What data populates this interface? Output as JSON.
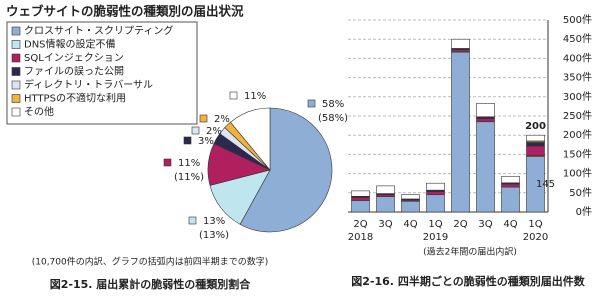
{
  "chart_data": [
    {
      "type": "pie",
      "title": "ウェブサイトの脆弱性の種類別の届出状況",
      "categories": [
        "クロスサイト・スクリプティング",
        "DNS情報の設定不備",
        "SQLインジェクション",
        "ファイルの誤った公開",
        "ディレクトリ・トラバーサル",
        "HTTPSの不適切な利用",
        "その他"
      ],
      "values": [
        58,
        13,
        11,
        3,
        2,
        2,
        11
      ],
      "value_labels": [
        "58%",
        "13%",
        "11%",
        "3%",
        "2%",
        "2%",
        "11%"
      ],
      "previous_value_labels": [
        "(58%)",
        "(13%)",
        "(11%)",
        null,
        null,
        null,
        null
      ],
      "colors": [
        "#8eaed6",
        "#bfe6ee",
        "#b0205e",
        "#2b2950",
        "#dfe4f2",
        "#f2b33d",
        "#ffffff"
      ],
      "note": "(10,700件の内訳、グラフの括弧内は前四半期までの数字)",
      "caption": "図2-15. 届出累計の脆弱性の種類別割合"
    },
    {
      "type": "bar",
      "stacked": true,
      "categories": [
        "2Q",
        "3Q",
        "4Q",
        "1Q",
        "2Q",
        "3Q",
        "4Q",
        "1Q"
      ],
      "year_labels": [
        "2018",
        null,
        null,
        "2019",
        null,
        null,
        null,
        "2020"
      ],
      "series": [
        {
          "color": "#8eaed6",
          "values": [
            30,
            40,
            28,
            45,
            415,
            235,
            65,
            145
          ],
          "value_labels": [
            null,
            null,
            null,
            null,
            null,
            null,
            null,
            "145"
          ]
        },
        {
          "color": "#bfe6ee",
          "values": [
            0,
            0,
            0,
            0,
            3,
            0,
            0,
            2
          ]
        },
        {
          "color": "#b0205e",
          "values": [
            8,
            5,
            3,
            8,
            5,
            8,
            8,
            25
          ]
        },
        {
          "color": "#2b2950",
          "values": [
            3,
            3,
            3,
            4,
            3,
            5,
            3,
            8
          ]
        },
        {
          "color": "#dfe4f2",
          "values": [
            0,
            0,
            0,
            0,
            0,
            0,
            0,
            2
          ]
        },
        {
          "color": "#f2b33d",
          "values": [
            0,
            0,
            0,
            0,
            0,
            0,
            0,
            3
          ]
        },
        {
          "color": "#ffffff",
          "values": [
            14,
            20,
            11,
            18,
            24,
            35,
            17,
            15
          ]
        }
      ],
      "total_labels": [
        null,
        null,
        null,
        null,
        null,
        null,
        null,
        "200"
      ],
      "ylim": [
        0,
        500
      ],
      "yticks": [
        {
          "value": 0,
          "label": "0件"
        },
        {
          "value": 50,
          "label": "50件"
        },
        {
          "value": 100,
          "label": "100件"
        },
        {
          "value": 150,
          "label": "150件"
        },
        {
          "value": 200,
          "label": "200件"
        },
        {
          "value": 250,
          "label": "250件"
        },
        {
          "value": 300,
          "label": "300件"
        },
        {
          "value": 350,
          "label": "350件"
        },
        {
          "value": 400,
          "label": "400件"
        },
        {
          "value": 450,
          "label": "450件"
        },
        {
          "value": 500,
          "label": "500件"
        }
      ],
      "grid": true,
      "note": "(過去2年間の届出内訳)",
      "caption": "図2-16. 四半期ごとの脆弱性の種類別届出件数"
    }
  ]
}
